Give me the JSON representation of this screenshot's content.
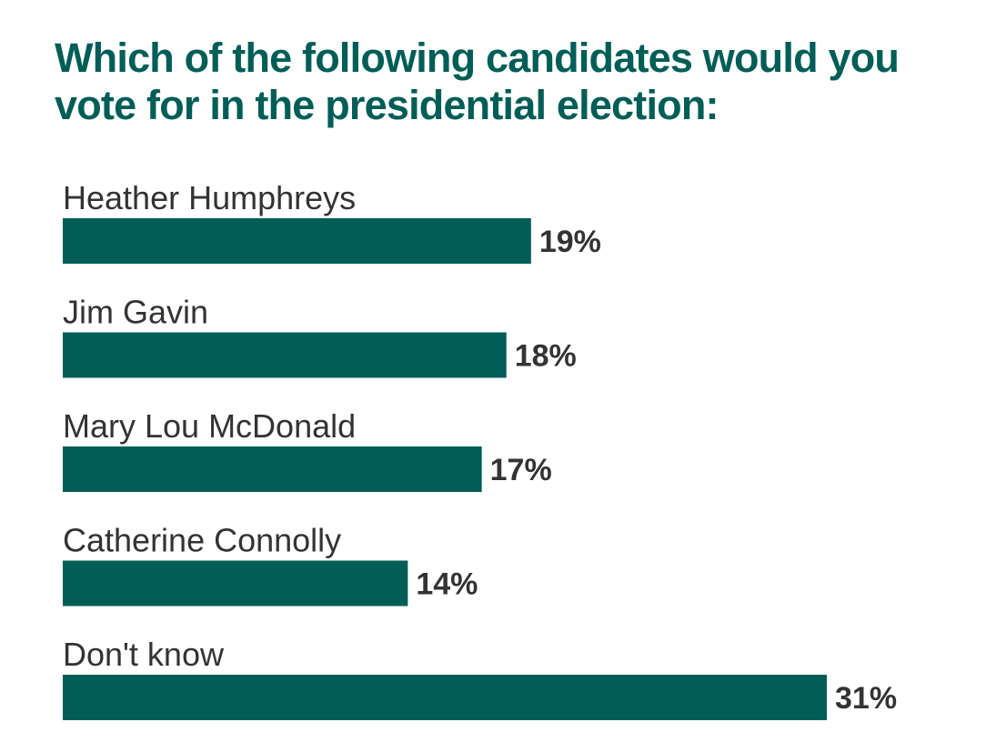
{
  "chart_data": {
    "type": "bar",
    "orientation": "horizontal",
    "title": "Which of the following candidates would you vote for in the presidential election:",
    "categories": [
      "Heather Humphreys",
      "Jim Gavin",
      "Mary Lou McDonald",
      "Catherine Connolly",
      "Don't know"
    ],
    "values": [
      19,
      18,
      17,
      14,
      31
    ],
    "value_labels": [
      "19%",
      "18%",
      "17%",
      "14%",
      "31%"
    ],
    "unit": "%",
    "xlim": [
      0,
      31
    ],
    "grid": false,
    "legend": "none",
    "colors": {
      "title": "#005e57",
      "bar": "#005e57",
      "text": "#333333"
    }
  }
}
